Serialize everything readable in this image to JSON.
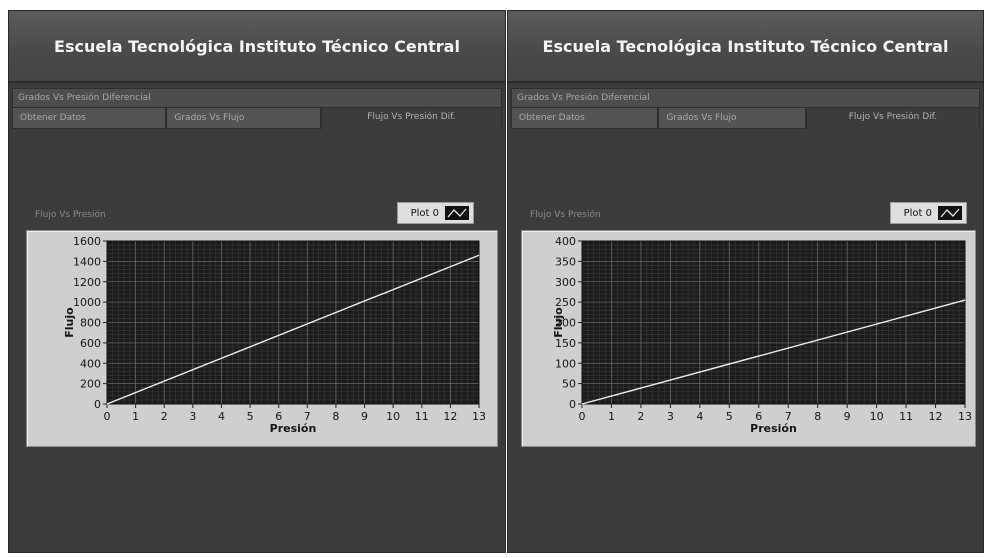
{
  "panels": [
    {
      "title": "Escuela Tecnológica Instituto Técnico Central",
      "tab_group": "Grados Vs Presión Diferencial",
      "tabs": [
        {
          "label": "Obtener Datos"
        },
        {
          "label": "Grados Vs Flujo"
        },
        {
          "label": "Flujo Vs Presión Dif."
        }
      ],
      "graph_label": "Flujo Vs Presión",
      "legend": {
        "label": "Plot 0"
      }
    },
    {
      "title": "Escuela Tecnológica Instituto Técnico Central",
      "tab_group": "Grados Vs Presión Diferencial",
      "tabs": [
        {
          "label": "Obtener Datos"
        },
        {
          "label": "Grados Vs Flujo"
        },
        {
          "label": "Flujo Vs Presión Dif."
        }
      ],
      "graph_label": "Flujo Vs Presión",
      "legend": {
        "label": "Plot 0"
      }
    }
  ],
  "chart_data": [
    {
      "type": "line",
      "xlabel": "Presión",
      "ylabel": "Flujo",
      "xlim": [
        0,
        13
      ],
      "ylim": [
        0,
        1600
      ],
      "x_ticks": [
        0,
        1,
        2,
        3,
        4,
        5,
        6,
        7,
        8,
        9,
        10,
        11,
        12,
        13
      ],
      "y_ticks": [
        0,
        200,
        400,
        600,
        800,
        1000,
        1200,
        1400,
        1600
      ],
      "grid": true,
      "series": [
        {
          "x": [
            0,
            13
          ],
          "y": [
            0,
            1460
          ]
        }
      ]
    },
    {
      "type": "line",
      "xlabel": "Presión",
      "ylabel": "Flujo",
      "xlim": [
        0,
        13
      ],
      "ylim": [
        0,
        400
      ],
      "x_ticks": [
        0,
        1,
        2,
        3,
        4,
        5,
        6,
        7,
        8,
        9,
        10,
        11,
        12,
        13
      ],
      "y_ticks": [
        0,
        50,
        100,
        150,
        200,
        250,
        300,
        350,
        400
      ],
      "grid": true,
      "series": [
        {
          "x": [
            0,
            13
          ],
          "y": [
            0,
            255
          ]
        }
      ]
    }
  ]
}
